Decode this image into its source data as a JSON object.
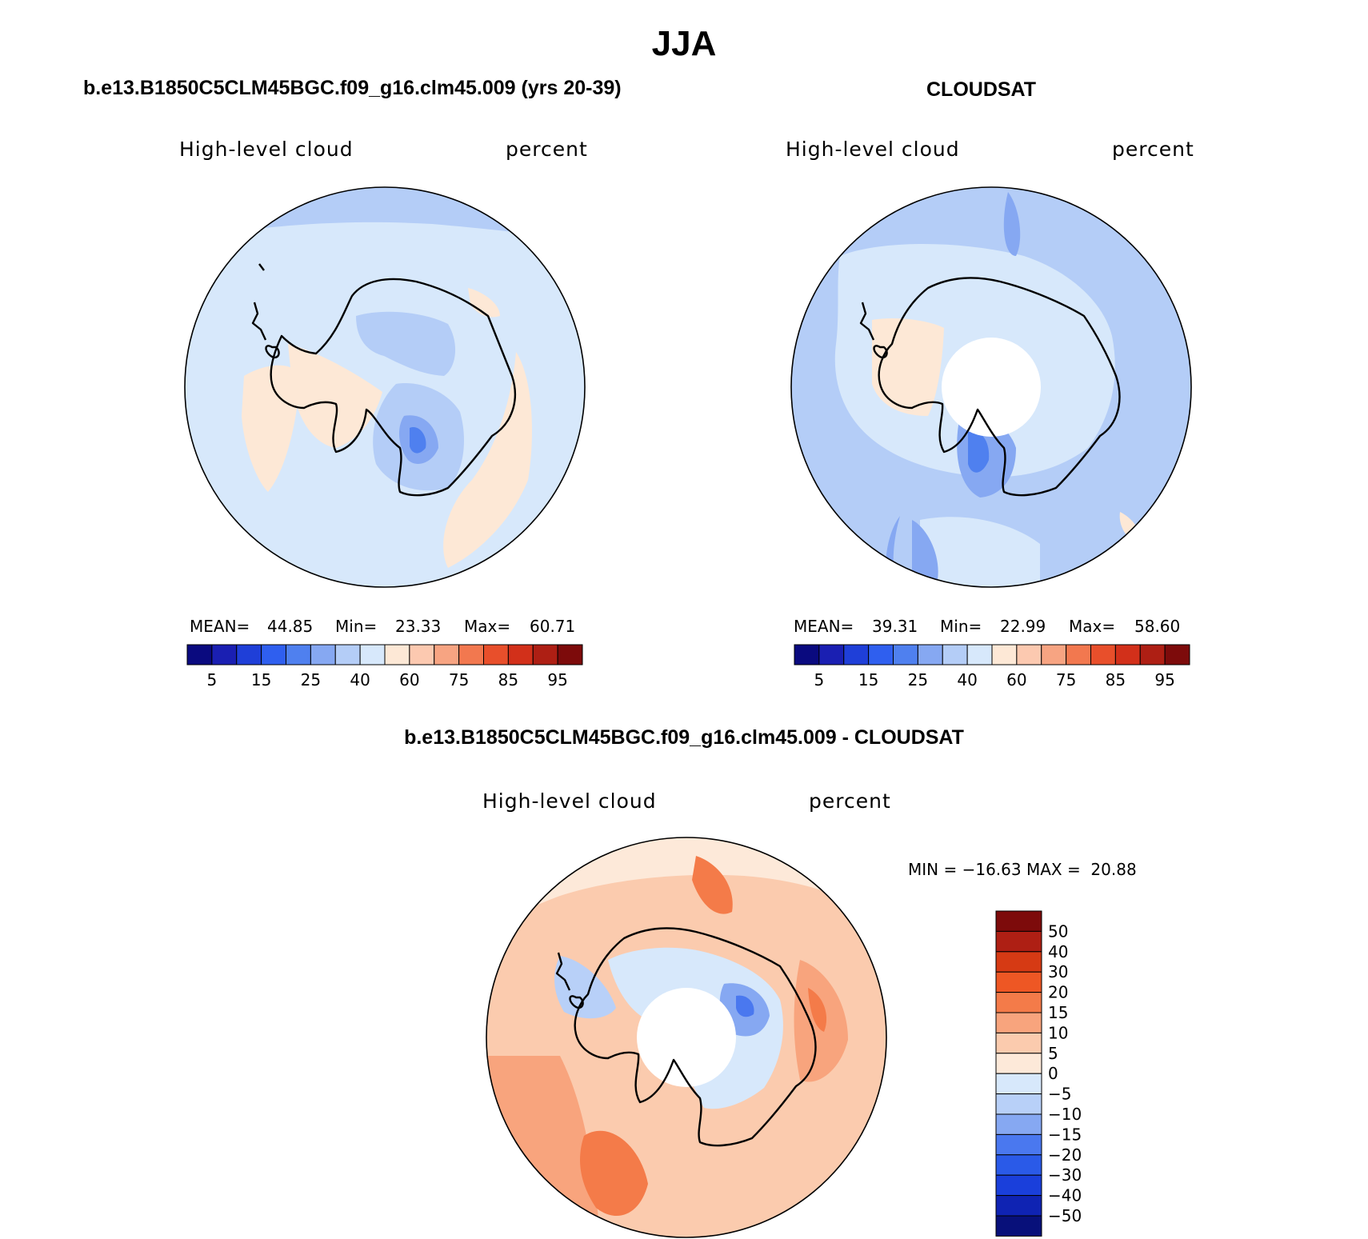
{
  "title": "JJA",
  "panels": [
    {
      "case": "b.e13.B1850C5CLM45BGC.f09_g16.clm45.009 (yrs 20-39)",
      "variable": "High-level cloud",
      "units": "percent",
      "stats": {
        "mean": "44.85",
        "min": "23.33",
        "max": "60.71"
      }
    },
    {
      "case": "CLOUDSAT",
      "variable": "High-level cloud",
      "units": "percent",
      "stats": {
        "mean": "39.31",
        "min": "22.99",
        "max": "58.60"
      }
    },
    {
      "case": "b.e13.B1850C5CLM45BGC.f09_g16.clm45.009 - CLOUDSAT",
      "variable": "High-level cloud",
      "units": "percent",
      "minmax": "MIN = −16.63 MAX =  20.88"
    }
  ],
  "stat_labels": {
    "mean": "MEAN=",
    "min": "Min=",
    "max": "Max="
  },
  "colorbar_abs": {
    "levels": [
      "5",
      "15",
      "25",
      "40",
      "60",
      "75",
      "85",
      "95"
    ],
    "colors": [
      "#0a0a7f",
      "#1a1fb2",
      "#1f3fd8",
      "#2f5fef",
      "#4f80ef",
      "#86a8f2",
      "#b4cdf7",
      "#d7e8fb",
      "#fde8d6",
      "#fcc9b0",
      "#f7a482",
      "#f2784f",
      "#e84f2b",
      "#d2301a",
      "#ae1f14",
      "#7d0b0b"
    ]
  },
  "colorbar_diff": {
    "levels": [
      "50",
      "40",
      "30",
      "20",
      "15",
      "10",
      "5",
      "0",
      "−5",
      "−10",
      "−15",
      "−20",
      "−30",
      "−40",
      "−50"
    ],
    "colors": [
      "#7d0b0b",
      "#ae1f14",
      "#d63a14",
      "#ee5724",
      "#f47b49",
      "#f8a47d",
      "#fbcbae",
      "#fde9d9",
      "#d7e8fb",
      "#b8d0f8",
      "#86a8f2",
      "#4a78ef",
      "#2a5ae8",
      "#1a3fdb",
      "#0f23b3",
      "#08107a"
    ]
  }
}
